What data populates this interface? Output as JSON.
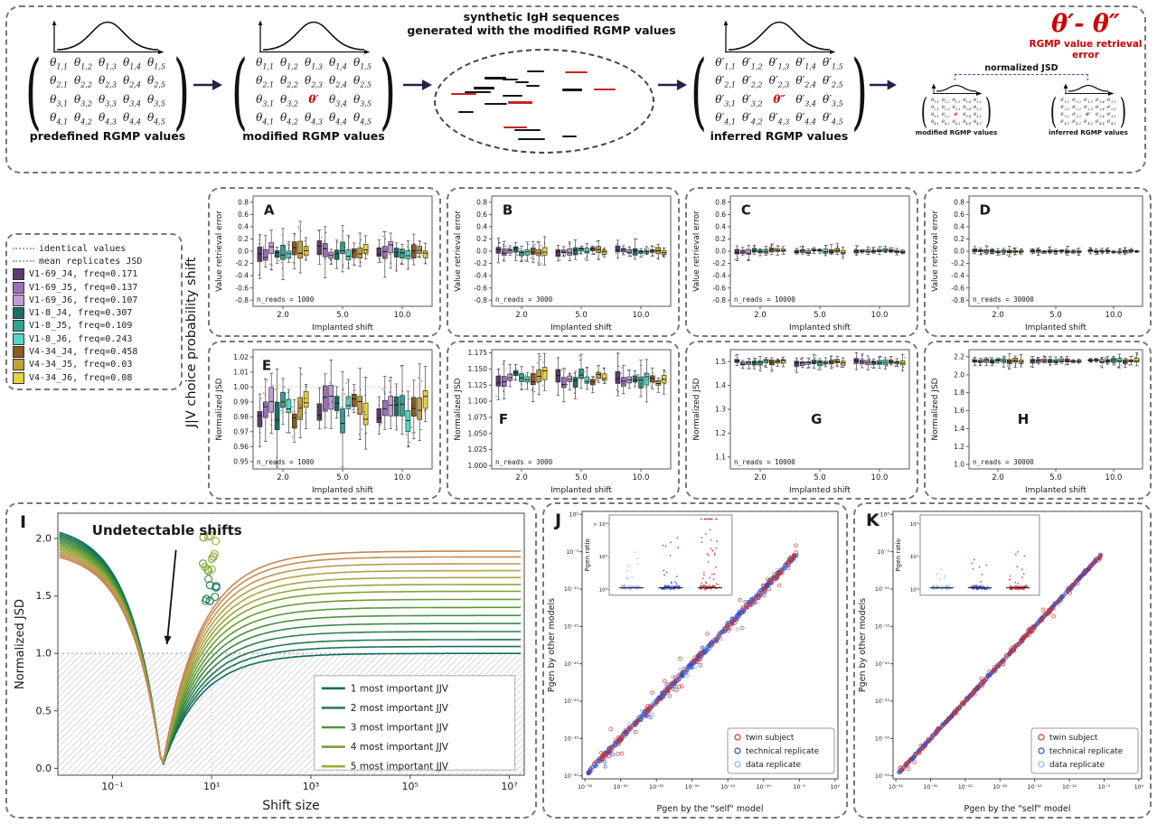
{
  "section_label": "J|V choice probability shift",
  "diagram": {
    "rows": 4,
    "cols": 5,
    "cell_symbol": "θ",
    "special_color": "#cc0000",
    "matrices": [
      {
        "id": "m1",
        "label": "predefined RGMP values",
        "prime": false,
        "special": null
      },
      {
        "id": "m2",
        "label": "modified RGMP values",
        "prime": false,
        "special": {
          "r": 3,
          "c": 3,
          "text": "θ′"
        }
      },
      {
        "id": "m3",
        "label": "inferred RGMP values",
        "prime": true,
        "special": {
          "r": 3,
          "c": 3,
          "text": "θ″"
        }
      }
    ],
    "mini_matrices": [
      {
        "id": "mm1",
        "label": "modified RGMP values",
        "prime": false,
        "special": {
          "r": 3,
          "c": 3,
          "text": "θ′"
        }
      },
      {
        "id": "mm2",
        "label": "inferred RGMP values",
        "prime": true,
        "special": {
          "r": 3,
          "c": 3,
          "text": "θ″"
        }
      }
    ],
    "ellipse_title_line1": "synthetic IgH sequences",
    "ellipse_title_line2": "generated with the modified RGMP values",
    "jsd_label": "normalized JSD",
    "error_formula": "θ′- θ″",
    "error_label": "RGMP value retrieval error",
    "segments": {
      "n": 20,
      "red_idx": [
        1,
        6,
        10,
        15,
        18
      ],
      "seed": 9
    }
  },
  "legend_box": {
    "reference_items": [
      {
        "label": "identical values"
      },
      {
        "label": "mean replicates JSD"
      }
    ],
    "series": [
      {
        "label": "V1-69_J4, freq=0.171",
        "color": "#5d3b6e"
      },
      {
        "label": "V1-69_J5, freq=0.137",
        "color": "#9b6fb9"
      },
      {
        "label": "V1-69_J6, freq=0.107",
        "color": "#c09bd8"
      },
      {
        "label": "V1-8_J4,  freq=0.307",
        "color": "#1e6f63"
      },
      {
        "label": "V1-8_J5,  freq=0.109",
        "color": "#2fa48e"
      },
      {
        "label": "V1-8_J6,  freq=0.243",
        "color": "#54d6c4"
      },
      {
        "label": "V4-34_J4, freq=0.458",
        "color": "#8a5a20"
      },
      {
        "label": "V4-34_J5, freq=0.03",
        "color": "#c2a13a"
      },
      {
        "label": "V4-34_J6, freq=0.08",
        "color": "#e6d23e"
      }
    ]
  },
  "chart_data": [
    {
      "id": "A",
      "type": "box",
      "letter": "A",
      "letter_pos": [
        0.06,
        0.17
      ],
      "n_reads_label": "n_reads = 1000",
      "xlabel": "Implanted shift",
      "ylabel": "Value retrieval error",
      "groups": [
        "2.0",
        "5.0",
        "10.0"
      ],
      "ylim": [
        -0.9,
        0.9
      ],
      "yticks": [
        0.8,
        0.6,
        0.4,
        0.2,
        0.0,
        -0.2,
        -0.4,
        -0.6,
        -0.8
      ],
      "ydec": 1,
      "gen": {
        "seed": 101,
        "center": 0,
        "center_jitter": 0.07,
        "spread": 0.18,
        "group_factors": [
          1,
          0.9,
          0.8
        ]
      }
    },
    {
      "id": "B",
      "type": "box",
      "letter": "B",
      "letter_pos": [
        0.06,
        0.17
      ],
      "n_reads_label": "n_reads = 3000",
      "xlabel": "Implanted shift",
      "ylabel": "Value retrieval error",
      "groups": [
        "2.0",
        "5.0",
        "10.0"
      ],
      "ylim": [
        -0.9,
        0.9
      ],
      "yticks": [
        0.8,
        0.6,
        0.4,
        0.2,
        0.0,
        -0.2,
        -0.4,
        -0.6,
        -0.8
      ],
      "ydec": 1,
      "gen": {
        "seed": 102,
        "center": 0,
        "center_jitter": 0.04,
        "spread": 0.09,
        "group_factors": [
          1,
          0.9,
          0.8
        ]
      }
    },
    {
      "id": "C",
      "type": "box",
      "letter": "C",
      "letter_pos": [
        0.06,
        0.17
      ],
      "n_reads_label": "n_reads = 10000",
      "xlabel": "Implanted shift",
      "ylabel": "Value retrieval error",
      "groups": [
        "2.0",
        "5.0",
        "10.0"
      ],
      "ylim": [
        -0.9,
        0.9
      ],
      "yticks": [
        0.8,
        0.6,
        0.4,
        0.2,
        0.0,
        -0.2,
        -0.4,
        -0.6,
        -0.8
      ],
      "ydec": 1,
      "gen": {
        "seed": 103,
        "center": 0,
        "center_jitter": 0.02,
        "spread": 0.05,
        "group_factors": [
          1,
          0.9,
          0.8
        ]
      }
    },
    {
      "id": "D",
      "type": "box",
      "letter": "D",
      "letter_pos": [
        0.06,
        0.17
      ],
      "n_reads_label": "n_reads = 30000",
      "xlabel": "Implanted shift",
      "ylabel": "Value retrieval error",
      "groups": [
        "2.0",
        "5.0",
        "10.0"
      ],
      "ylim": [
        -0.9,
        0.9
      ],
      "yticks": [
        0.8,
        0.6,
        0.4,
        0.2,
        0.0,
        -0.2,
        -0.4,
        -0.6,
        -0.8
      ],
      "ydec": 1,
      "gen": {
        "seed": 104,
        "center": 0,
        "center_jitter": 0.012,
        "spread": 0.03,
        "group_factors": [
          1,
          0.9,
          0.8
        ]
      }
    },
    {
      "id": "E",
      "type": "box",
      "letter": "E",
      "letter_pos": [
        0.05,
        0.17
      ],
      "n_reads_label": "n_reads = 1000",
      "xlabel": "Implanted shift",
      "ylabel": "Normalized JSD",
      "groups": [
        "2.0",
        "5.0",
        "10.0"
      ],
      "refline": 1.0,
      "ylim": [
        0.945,
        1.025
      ],
      "yticks": [
        1.02,
        1.01,
        1.0,
        0.99,
        0.98,
        0.97,
        0.96,
        0.95
      ],
      "ydec": 2,
      "gen": {
        "seed": 105,
        "center": 0.985,
        "center_jitter": 0.009,
        "spread": 0.012,
        "group_factors": [
          1,
          1,
          0.95
        ]
      }
    },
    {
      "id": "F",
      "type": "box",
      "letter": "F",
      "letter_pos": [
        0.04,
        0.62
      ],
      "n_reads_label": "n_reads = 3000",
      "xlabel": "Implanted shift",
      "ylabel": "Normalized JSD",
      "groups": [
        "2.0",
        "5.0",
        "10.0"
      ],
      "ylim": [
        0.995,
        1.18
      ],
      "yticks": [
        1.175,
        1.15,
        1.125,
        1.1,
        1.075,
        1.05,
        1.025,
        1.0
      ],
      "ydec": 3,
      "gen": {
        "seed": 106,
        "center": 1.136,
        "center_jitter": 0.008,
        "spread": 0.013,
        "group_factors": [
          1,
          1,
          0.95
        ]
      }
    },
    {
      "id": "G",
      "type": "box",
      "letter": "G",
      "letter_pos": [
        0.45,
        0.62
      ],
      "n_reads_label": "n_reads = 10000",
      "xlabel": "Implanted shift",
      "ylabel": "Normalized JSD",
      "groups": [
        "2.0",
        "5.0",
        "10.0"
      ],
      "ylim": [
        1.05,
        1.55
      ],
      "yticks": [
        1.5,
        1.4,
        1.3,
        1.2,
        1.1
      ],
      "ydec": 1,
      "gen": {
        "seed": 107,
        "center": 1.497,
        "center_jitter": 0.006,
        "spread": 0.014,
        "group_factors": [
          1,
          1,
          1
        ]
      }
    },
    {
      "id": "H",
      "type": "box",
      "letter": "H",
      "letter_pos": [
        0.28,
        0.62
      ],
      "n_reads_label": "n_reads = 30000",
      "xlabel": "Implanted shift",
      "ylabel": "Normalized JSD",
      "groups": [
        "2.0",
        "5.0",
        "10.0"
      ],
      "ylim": [
        0.95,
        2.28
      ],
      "yticks": [
        2.2,
        2.0,
        1.8,
        1.6,
        1.4,
        1.2,
        1.0
      ],
      "ydec": 1,
      "gen": {
        "seed": 108,
        "center": 2.155,
        "center_jitter": 0.01,
        "spread": 0.03,
        "group_factors": [
          1,
          1,
          1
        ]
      }
    },
    {
      "id": "I",
      "type": "line",
      "letter": "I",
      "xlabel": "Shift size",
      "ylabel": "Normalized JSD",
      "annotation": "Undetectable shifts",
      "reference_level": 1.0,
      "xdomain": [
        -2.1,
        7.3
      ],
      "ydomain": [
        -0.06,
        2.22
      ],
      "xticks": [
        {
          "l": -1,
          "label": "10⁻¹"
        },
        {
          "l": 1,
          "label": "10¹"
        },
        {
          "l": 3,
          "label": "10³"
        },
        {
          "l": 5,
          "label": "10⁵"
        },
        {
          "l": 7,
          "label": "10⁷"
        }
      ],
      "yticks": [
        0.0,
        0.5,
        1.0,
        1.5,
        2.0
      ],
      "left_max_base": 2.13,
      "left_max_step": 0.016,
      "curves": [
        {
          "plateau": 1.0,
          "color": "#0e6e60"
        },
        {
          "plateau": 1.06,
          "color": "#177257"
        },
        {
          "plateau": 1.12,
          "color": "#21784f"
        },
        {
          "plateau": 1.19,
          "color": "#2d8049"
        },
        {
          "plateau": 1.26,
          "color": "#3a8843"
        },
        {
          "plateau": 1.33,
          "color": "#49903e"
        },
        {
          "plateau": 1.4,
          "color": "#599739"
        },
        {
          "plateau": 1.47,
          "color": "#6b9e36"
        },
        {
          "plateau": 1.54,
          "color": "#7ea434"
        },
        {
          "plateau": 1.6,
          "color": "#92a83a"
        },
        {
          "plateau": 1.66,
          "color": "#a5a643"
        },
        {
          "plateau": 1.72,
          "color": "#b3a04b"
        },
        {
          "plateau": 1.78,
          "color": "#bd9750"
        },
        {
          "plateau": 1.84,
          "color": "#c48d52"
        },
        {
          "plateau": 1.89,
          "color": "#c98453"
        }
      ],
      "cluster": {
        "seed": 55,
        "x_range": [
          0.8,
          1.2
        ],
        "groups": [
          {
            "n": 12,
            "y": [
              1.7,
              2.07
            ],
            "colors": [
              "#8fae45",
              "#a3b84a",
              "#7da33f"
            ]
          },
          {
            "n": 8,
            "y": [
              1.45,
              1.66
            ],
            "colors": [
              "#2e8454",
              "#19745c",
              "#55984a"
            ]
          }
        ]
      },
      "legend": [
        {
          "label": "1 most important JJV",
          "color": "#0e6e60"
        },
        {
          "label": "2 most important JJV",
          "color": "#2e7d4f"
        },
        {
          "label": "3 most important JJV",
          "color": "#4f9440"
        },
        {
          "label": "4 most important JJV",
          "color": "#74a337"
        },
        {
          "label": "5 most important JJV",
          "color": "#97b23a"
        }
      ]
    },
    {
      "id": "J",
      "type": "scatter",
      "letter": "J",
      "seed": 7,
      "xlabel": "Pgen by the \"self\" model",
      "ylabel": "Pgen by other models",
      "domain": [
        -35.4,
        0.4
      ],
      "tick_exps": [
        -35,
        -30,
        -25,
        -20,
        -15,
        -10,
        -5,
        0
      ],
      "tick_labels": [
        "10⁻³⁵",
        "10⁻³⁰",
        "10⁻²⁵",
        "10⁻²⁰",
        "10⁻¹⁵",
        "10⁻¹⁰",
        "10⁻⁵",
        "10⁰"
      ],
      "series": [
        {
          "name": "data replicate",
          "color": "#8fb3f5",
          "n": 720,
          "noise": 0.3,
          "r": 1.6,
          "big_frac": 0.04,
          "big_noise": 1.5
        },
        {
          "name": "technical replicate",
          "color": "#2e4bc6",
          "n": 300,
          "noise": 0.45,
          "r": 1.7,
          "big_frac": 0.06,
          "big_noise": 2.0
        },
        {
          "name": "twin subject",
          "color": "#cf3535",
          "n": 170,
          "noise": 0.6,
          "r": 1.9,
          "big_frac": 0.2,
          "big_noise": 3.0
        }
      ],
      "legend": [
        {
          "label": "twin subject",
          "color": "#cf3535"
        },
        {
          "label": "technical replicate",
          "color": "#2e4bc6"
        },
        {
          "label": "data replicate",
          "color": "#8fb3f5"
        }
      ],
      "inset": {
        "label": "Pgen ratio",
        "yticks": [
          {
            "v": 4,
            "label": "> 10⁴"
          },
          {
            "v": 2,
            "label": "10²"
          },
          {
            "v": 0,
            "label": "10⁰"
          }
        ],
        "clusters": [
          {
            "color": "#8fb3f5",
            "outliers": 8,
            "max": 2.3,
            "cap_row": false
          },
          {
            "color": "#2e4bc6",
            "outliers": 14,
            "max": 3.3,
            "cap_row": false
          },
          {
            "color": "#cf3535",
            "outliers": 28,
            "max": 4.3,
            "cap_row": true
          }
        ]
      }
    },
    {
      "id": "K",
      "type": "scatter",
      "letter": "K",
      "seed": 8,
      "xlabel": "Pgen by the \"self\" model",
      "ylabel": "Pgen by other models",
      "domain": [
        -35.4,
        0.4
      ],
      "tick_exps": [
        -35,
        -30,
        -25,
        -20,
        -15,
        -10,
        -5,
        0
      ],
      "tick_labels": [
        "10⁻³⁵",
        "10⁻³⁰",
        "10⁻²⁵",
        "10⁻²⁰",
        "10⁻¹⁵",
        "10⁻¹⁰",
        "10⁻⁵",
        "10⁰"
      ],
      "series": [
        {
          "name": "data replicate",
          "color": "#8fb3f5",
          "n": 720,
          "noise": 0.15,
          "r": 1.6,
          "big_frac": 0.02,
          "big_noise": 0.8
        },
        {
          "name": "technical replicate",
          "color": "#2e4bc6",
          "n": 300,
          "noise": 0.2,
          "r": 1.7,
          "big_frac": 0.03,
          "big_noise": 1.0
        },
        {
          "name": "twin subject",
          "color": "#cf3535",
          "n": 170,
          "noise": 0.35,
          "r": 1.9,
          "big_frac": 0.08,
          "big_noise": 1.5
        }
      ],
      "legend": [
        {
          "label": "twin subject",
          "color": "#cf3535"
        },
        {
          "label": "technical replicate",
          "color": "#2e4bc6"
        },
        {
          "label": "data replicate",
          "color": "#8fb3f5"
        }
      ],
      "inset": {
        "label": "Pgen ratio",
        "yticks": [
          {
            "v": 4,
            "label": "10⁴"
          },
          {
            "v": 2,
            "label": "10²"
          },
          {
            "v": 0,
            "label": "10⁰"
          }
        ],
        "clusters": [
          {
            "color": "#8fb3f5",
            "outliers": 5,
            "max": 1.6,
            "cap_row": false
          },
          {
            "color": "#2e4bc6",
            "outliers": 7,
            "max": 1.9,
            "cap_row": false
          },
          {
            "color": "#cf3535",
            "outliers": 12,
            "max": 2.3,
            "cap_row": false
          }
        ]
      }
    }
  ]
}
